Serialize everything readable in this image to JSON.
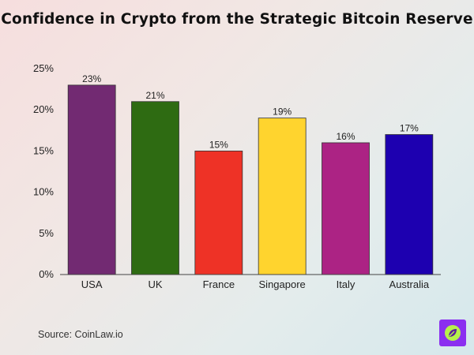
{
  "title": "Confidence in Crypto from the Strategic Bitcoin Reserve",
  "source": "Source: CoinLaw.io",
  "logo_icon": "coinlaw-leaf-logo",
  "chart_data": {
    "type": "bar",
    "title": "Confidence in Crypto from the Strategic Bitcoin Reserve",
    "categories": [
      "USA",
      "UK",
      "France",
      "Singapore",
      "Italy",
      "Australia"
    ],
    "values": [
      23,
      21,
      15,
      19,
      16,
      17
    ],
    "value_labels": [
      "23%",
      "21%",
      "15%",
      "19%",
      "16%",
      "17%"
    ],
    "colors": [
      "#722a72",
      "#2e6b12",
      "#ee3226",
      "#ffd42e",
      "#ac2384",
      "#1d00b0"
    ],
    "ylim": [
      0,
      25
    ],
    "yticks": [
      0,
      5,
      10,
      15,
      20,
      25
    ],
    "ytick_labels": [
      "0%",
      "5%",
      "10%",
      "15%",
      "20%",
      "25%"
    ],
    "xlabel": "",
    "ylabel": "",
    "grid": false,
    "legend": "none"
  }
}
